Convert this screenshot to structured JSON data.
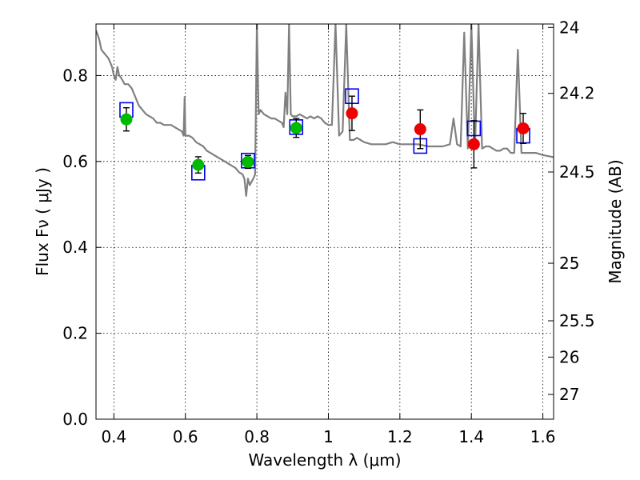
{
  "chart_data": {
    "type": "scatter",
    "title": "",
    "xlabel": "Wavelength  λ (μm)",
    "ylabel": "Flux  Fν  ( μJy )",
    "y2label": "Magnitude (AB)",
    "xlim": [
      0.35,
      1.63
    ],
    "ylim": [
      0.0,
      0.92
    ],
    "grid": true,
    "x_ticks": [
      {
        "value": 0.4,
        "label": "0.4"
      },
      {
        "value": 0.6,
        "label": "0.6"
      },
      {
        "value": 0.8,
        "label": "0.8"
      },
      {
        "value": 1.0,
        "label": "1"
      },
      {
        "value": 1.2,
        "label": "1.2"
      },
      {
        "value": 1.4,
        "label": "1.4"
      },
      {
        "value": 1.6,
        "label": "1.6"
      }
    ],
    "y_ticks": [
      {
        "value": 0.0,
        "label": "0.0"
      },
      {
        "value": 0.2,
        "label": "0.2"
      },
      {
        "value": 0.4,
        "label": "0.4"
      },
      {
        "value": 0.6,
        "label": "0.6"
      },
      {
        "value": 0.8,
        "label": "0.8"
      }
    ],
    "y2_ticks": [
      {
        "value": 24,
        "label": "24"
      },
      {
        "value": 24.2,
        "label": "24.2"
      },
      {
        "value": 24.5,
        "label": "24.5"
      },
      {
        "value": 25,
        "label": "25"
      },
      {
        "value": 25.5,
        "label": "25.5"
      },
      {
        "value": 26,
        "label": "26"
      },
      {
        "value": 27,
        "label": "27"
      }
    ],
    "model_spectrum": {
      "color": "#808080",
      "points": [
        [
          0.35,
          0.905
        ],
        [
          0.357,
          0.89
        ],
        [
          0.36,
          0.88
        ],
        [
          0.365,
          0.86
        ],
        [
          0.37,
          0.855
        ],
        [
          0.375,
          0.85
        ],
        [
          0.38,
          0.845
        ],
        [
          0.385,
          0.84
        ],
        [
          0.39,
          0.83
        ],
        [
          0.395,
          0.82
        ],
        [
          0.4,
          0.8
        ],
        [
          0.405,
          0.79
        ],
        [
          0.41,
          0.82
        ],
        [
          0.415,
          0.8
        ],
        [
          0.42,
          0.795
        ],
        [
          0.43,
          0.78
        ],
        [
          0.44,
          0.78
        ],
        [
          0.445,
          0.775
        ],
        [
          0.45,
          0.77
        ],
        [
          0.46,
          0.75
        ],
        [
          0.47,
          0.73
        ],
        [
          0.48,
          0.72
        ],
        [
          0.49,
          0.71
        ],
        [
          0.5,
          0.705
        ],
        [
          0.51,
          0.7
        ],
        [
          0.52,
          0.69
        ],
        [
          0.53,
          0.69
        ],
        [
          0.54,
          0.685
        ],
        [
          0.55,
          0.685
        ],
        [
          0.56,
          0.685
        ],
        [
          0.57,
          0.68
        ],
        [
          0.58,
          0.675
        ],
        [
          0.59,
          0.67
        ],
        [
          0.595,
          0.66
        ],
        [
          0.598,
          0.75
        ],
        [
          0.6,
          0.66
        ],
        [
          0.61,
          0.66
        ],
        [
          0.62,
          0.655
        ],
        [
          0.63,
          0.645
        ],
        [
          0.64,
          0.64
        ],
        [
          0.65,
          0.635
        ],
        [
          0.66,
          0.625
        ],
        [
          0.67,
          0.62
        ],
        [
          0.68,
          0.615
        ],
        [
          0.69,
          0.61
        ],
        [
          0.7,
          0.605
        ],
        [
          0.71,
          0.6
        ],
        [
          0.72,
          0.595
        ],
        [
          0.73,
          0.59
        ],
        [
          0.74,
          0.585
        ],
        [
          0.75,
          0.575
        ],
        [
          0.76,
          0.57
        ],
        [
          0.765,
          0.56
        ],
        [
          0.77,
          0.52
        ],
        [
          0.775,
          0.56
        ],
        [
          0.78,
          0.545
        ],
        [
          0.79,
          0.56
        ],
        [
          0.795,
          0.57
        ],
        [
          0.8,
          0.92
        ],
        [
          0.805,
          0.71
        ],
        [
          0.81,
          0.72
        ],
        [
          0.82,
          0.71
        ],
        [
          0.83,
          0.705
        ],
        [
          0.84,
          0.7
        ],
        [
          0.85,
          0.7
        ],
        [
          0.86,
          0.695
        ],
        [
          0.87,
          0.69
        ],
        [
          0.875,
          0.68
        ],
        [
          0.88,
          0.76
        ],
        [
          0.885,
          0.71
        ],
        [
          0.89,
          0.92
        ],
        [
          0.895,
          0.71
        ],
        [
          0.9,
          0.705
        ],
        [
          0.91,
          0.705
        ],
        [
          0.92,
          0.71
        ],
        [
          0.93,
          0.705
        ],
        [
          0.94,
          0.7
        ],
        [
          0.95,
          0.705
        ],
        [
          0.96,
          0.7
        ],
        [
          0.97,
          0.705
        ],
        [
          0.98,
          0.7
        ],
        [
          0.99,
          0.69
        ],
        [
          1.0,
          0.685
        ],
        [
          1.01,
          0.685
        ],
        [
          1.02,
          0.92
        ],
        [
          1.03,
          0.66
        ],
        [
          1.04,
          0.67
        ],
        [
          1.05,
          0.92
        ],
        [
          1.06,
          0.65
        ],
        [
          1.07,
          0.65
        ],
        [
          1.08,
          0.655
        ],
        [
          1.09,
          0.65
        ],
        [
          1.1,
          0.645
        ],
        [
          1.12,
          0.64
        ],
        [
          1.14,
          0.64
        ],
        [
          1.16,
          0.64
        ],
        [
          1.18,
          0.645
        ],
        [
          1.2,
          0.64
        ],
        [
          1.22,
          0.64
        ],
        [
          1.25,
          0.64
        ],
        [
          1.28,
          0.635
        ],
        [
          1.3,
          0.635
        ],
        [
          1.32,
          0.635
        ],
        [
          1.34,
          0.64
        ],
        [
          1.35,
          0.7
        ],
        [
          1.36,
          0.64
        ],
        [
          1.37,
          0.635
        ],
        [
          1.38,
          0.9
        ],
        [
          1.39,
          0.63
        ],
        [
          1.4,
          0.92
        ],
        [
          1.41,
          0.63
        ],
        [
          1.42,
          0.92
        ],
        [
          1.43,
          0.63
        ],
        [
          1.44,
          0.635
        ],
        [
          1.45,
          0.635
        ],
        [
          1.46,
          0.63
        ],
        [
          1.47,
          0.625
        ],
        [
          1.48,
          0.625
        ],
        [
          1.49,
          0.63
        ],
        [
          1.5,
          0.63
        ],
        [
          1.51,
          0.62
        ],
        [
          1.52,
          0.62
        ],
        [
          1.53,
          0.86
        ],
        [
          1.54,
          0.62
        ],
        [
          1.55,
          0.62
        ],
        [
          1.56,
          0.62
        ],
        [
          1.57,
          0.62
        ],
        [
          1.58,
          0.62
        ],
        [
          1.6,
          0.615
        ],
        [
          1.63,
          0.61
        ]
      ]
    },
    "series": [
      {
        "marker": "circle",
        "color": "#00bb00",
        "points": [
          {
            "x": 0.435,
            "y": 0.698,
            "yerr": 0.027
          },
          {
            "x": 0.636,
            "y": 0.592,
            "yerr": 0.019
          },
          {
            "x": 0.775,
            "y": 0.599,
            "yerr": 0.015
          },
          {
            "x": 0.91,
            "y": 0.678,
            "yerr": 0.022
          }
        ]
      },
      {
        "marker": "circle",
        "color": "#ee0000",
        "points": [
          {
            "x": 1.066,
            "y": 0.712,
            "yerr": 0.04
          },
          {
            "x": 1.257,
            "y": 0.675,
            "yerr": 0.045
          },
          {
            "x": 1.407,
            "y": 0.64,
            "yerr": 0.055
          },
          {
            "x": 1.545,
            "y": 0.677,
            "yerr": 0.035
          }
        ]
      },
      {
        "marker": "square-open",
        "color": "#0000ee",
        "points": [
          {
            "x": 0.435,
            "y": 0.72
          },
          {
            "x": 0.636,
            "y": 0.574
          },
          {
            "x": 0.775,
            "y": 0.602
          },
          {
            "x": 0.91,
            "y": 0.68
          },
          {
            "x": 1.066,
            "y": 0.752
          },
          {
            "x": 1.257,
            "y": 0.636
          },
          {
            "x": 1.407,
            "y": 0.677
          },
          {
            "x": 1.545,
            "y": 0.66
          }
        ]
      }
    ]
  }
}
